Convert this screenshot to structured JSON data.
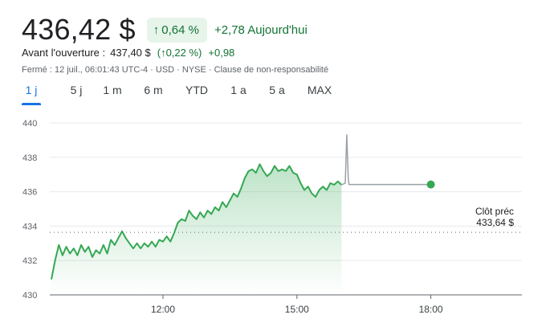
{
  "quote": {
    "price": "436,42 $",
    "change_pct": "0,64 %",
    "change_abs": "+2,78 Aujourd'hui",
    "arrow_icon": "arrow-up-icon"
  },
  "premarket": {
    "label": "Avant l'ouverture :",
    "price": "437,40 $",
    "pct": "(↑0,22 %)",
    "abs": "+0,98"
  },
  "meta": "Fermé : 12 juil., 06:01:43 UTC-4 · USD · NYSE · Clause de non-responsabilité",
  "tabs": [
    {
      "label": "1 j",
      "active": true
    },
    {
      "label": "5 j",
      "active": false
    },
    {
      "label": "1 m",
      "active": false
    },
    {
      "label": "6 m",
      "active": false
    },
    {
      "label": "YTD",
      "active": false
    },
    {
      "label": "1 a",
      "active": false
    },
    {
      "label": "5 a",
      "active": false
    },
    {
      "label": "MAX",
      "active": false
    }
  ],
  "colors": {
    "up": "#137333",
    "line": "#34a853",
    "accent": "#1a73e8",
    "after_hours_line": "#9aa0a6"
  },
  "chart_data": {
    "type": "line",
    "y_ticks": [
      "440",
      "438",
      "436",
      "434",
      "432",
      "430"
    ],
    "ylim": [
      430,
      440
    ],
    "x_ticks": [
      "12:00",
      "15:00",
      "18:00"
    ],
    "reference": {
      "label": "Clôt préc",
      "value_label": "433,64 $",
      "value": 433.64
    },
    "series": [
      {
        "points": [
          [
            "09:30",
            430.9
          ],
          [
            "09:35",
            432.0
          ],
          [
            "09:40",
            432.9
          ],
          [
            "09:45",
            432.3
          ],
          [
            "09:50",
            432.8
          ],
          [
            "09:55",
            432.4
          ],
          [
            "10:00",
            432.7
          ],
          [
            "10:05",
            432.3
          ],
          [
            "10:10",
            432.9
          ],
          [
            "10:15",
            432.5
          ],
          [
            "10:20",
            432.8
          ],
          [
            "10:25",
            432.2
          ],
          [
            "10:30",
            432.6
          ],
          [
            "10:35",
            432.4
          ],
          [
            "10:40",
            432.9
          ],
          [
            "10:45",
            432.4
          ],
          [
            "10:50",
            433.2
          ],
          [
            "10:55",
            432.9
          ],
          [
            "11:00",
            433.3
          ],
          [
            "11:05",
            433.7
          ],
          [
            "11:10",
            433.3
          ],
          [
            "11:15",
            433.0
          ],
          [
            "11:20",
            432.7
          ],
          [
            "11:25",
            433.0
          ],
          [
            "11:30",
            432.7
          ],
          [
            "11:35",
            433.0
          ],
          [
            "11:40",
            432.8
          ],
          [
            "11:45",
            433.1
          ],
          [
            "11:50",
            432.8
          ],
          [
            "11:55",
            433.2
          ],
          [
            "12:00",
            433.1
          ],
          [
            "12:05",
            433.4
          ],
          [
            "12:10",
            433.1
          ],
          [
            "12:15",
            433.6
          ],
          [
            "12:20",
            434.2
          ],
          [
            "12:25",
            434.4
          ],
          [
            "12:30",
            434.3
          ],
          [
            "12:35",
            434.9
          ],
          [
            "12:40",
            434.6
          ],
          [
            "12:45",
            434.4
          ],
          [
            "12:50",
            434.8
          ],
          [
            "12:55",
            434.5
          ],
          [
            "13:00",
            434.9
          ],
          [
            "13:05",
            434.7
          ],
          [
            "13:10",
            435.1
          ],
          [
            "13:15",
            434.9
          ],
          [
            "13:20",
            435.4
          ],
          [
            "13:25",
            435.1
          ],
          [
            "13:30",
            435.5
          ],
          [
            "13:35",
            435.9
          ],
          [
            "13:40",
            435.7
          ],
          [
            "13:45",
            436.2
          ],
          [
            "13:50",
            436.8
          ],
          [
            "13:55",
            437.2
          ],
          [
            "14:00",
            437.3
          ],
          [
            "14:05",
            437.1
          ],
          [
            "14:10",
            437.6
          ],
          [
            "14:15",
            437.2
          ],
          [
            "14:20",
            436.9
          ],
          [
            "14:25",
            437.1
          ],
          [
            "14:30",
            437.5
          ],
          [
            "14:35",
            437.2
          ],
          [
            "14:40",
            437.3
          ],
          [
            "14:45",
            437.2
          ],
          [
            "14:50",
            437.5
          ],
          [
            "14:55",
            437.1
          ],
          [
            "15:00",
            437.0
          ],
          [
            "15:05",
            436.5
          ],
          [
            "15:10",
            436.1
          ],
          [
            "15:15",
            436.3
          ],
          [
            "15:20",
            435.9
          ],
          [
            "15:25",
            435.7
          ],
          [
            "15:30",
            436.1
          ],
          [
            "15:35",
            436.3
          ],
          [
            "15:40",
            436.1
          ],
          [
            "15:45",
            436.5
          ],
          [
            "15:50",
            436.4
          ],
          [
            "15:55",
            436.6
          ],
          [
            "16:00",
            436.4
          ]
        ]
      },
      {
        "points": [
          [
            "16:00",
            436.4
          ],
          [
            "16:05",
            436.5
          ],
          [
            "16:07",
            439.3
          ],
          [
            "16:09",
            436.8
          ],
          [
            "16:10",
            436.42
          ],
          [
            "18:00",
            436.42
          ]
        ]
      }
    ]
  }
}
